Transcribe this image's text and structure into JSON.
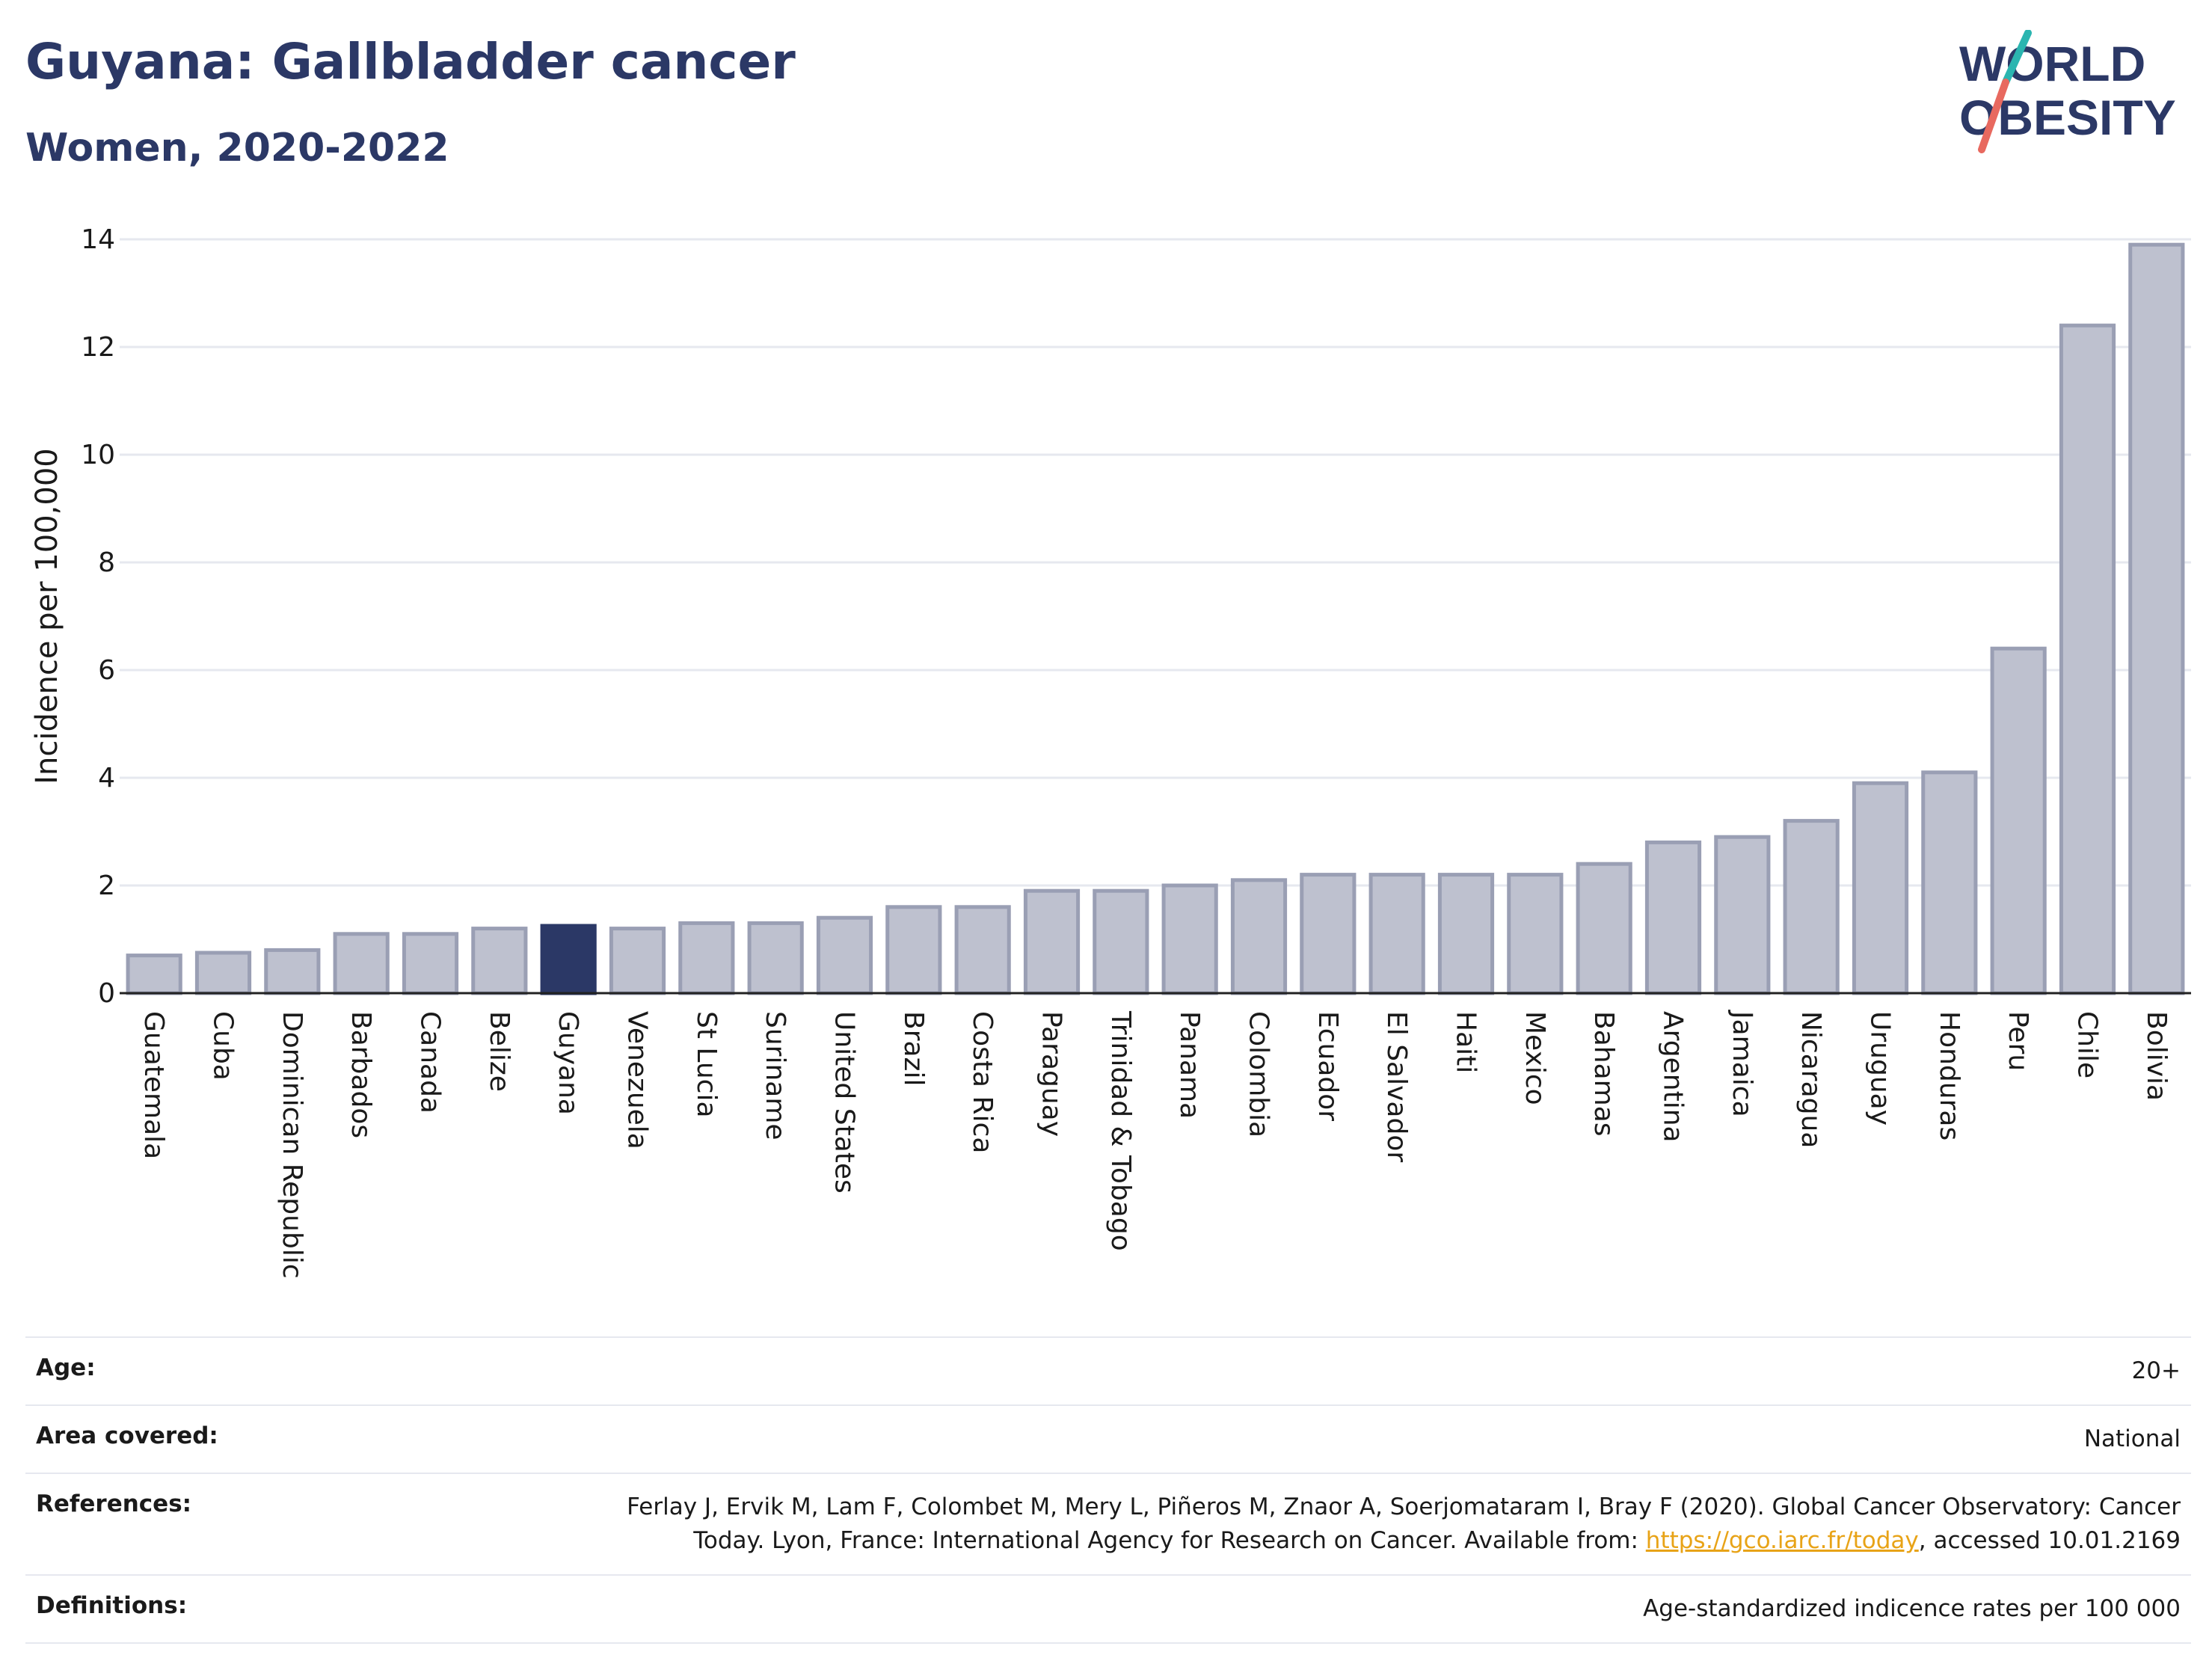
{
  "header": {
    "title": "Guyana: Gallbladder cancer",
    "subtitle": "Women, 2020-2022"
  },
  "logo": {
    "line1": "WORLD",
    "line2": "OBESITY",
    "colors": {
      "text": "#2b3866",
      "slash_teal": "#2bb5b0",
      "slash_coral": "#e8695f"
    }
  },
  "colors": {
    "bar_default": "#bec1cf",
    "bar_default_border": "#9a9fb4",
    "bar_highlight": "#2b3866",
    "grid": "#e6e8ef",
    "axis": "#222222"
  },
  "chart_data": {
    "type": "bar",
    "ylabel": "Incidence per 100,000",
    "xlabel": "",
    "ylim": [
      0,
      14
    ],
    "yticks": [
      0,
      2,
      4,
      6,
      8,
      10,
      12,
      14
    ],
    "grid": true,
    "highlight": "Guyana",
    "categories": [
      "Guatemala",
      "Cuba",
      "Dominican Republic",
      "Barbados",
      "Canada",
      "Belize",
      "Guyana",
      "Venezuela",
      "St Lucia",
      "Suriname",
      "United States",
      "Brazil",
      "Costa Rica",
      "Paraguay",
      "Trinidad & Tobago",
      "Panama",
      "Colombia",
      "Ecuador",
      "El Salvador",
      "Haiti",
      "Mexico",
      "Bahamas",
      "Argentina",
      "Jamaica",
      "Nicaragua",
      "Uruguay",
      "Honduras",
      "Peru",
      "Chile",
      "Bolivia"
    ],
    "values": [
      0.7,
      0.75,
      0.8,
      1.1,
      1.1,
      1.2,
      1.25,
      1.2,
      1.3,
      1.3,
      1.4,
      1.6,
      1.6,
      1.9,
      1.9,
      2.0,
      2.1,
      2.2,
      2.2,
      2.2,
      2.2,
      2.4,
      2.8,
      2.9,
      3.2,
      3.9,
      4.1,
      6.4,
      12.4,
      13.9
    ]
  },
  "info": {
    "age": {
      "label": "Age:",
      "value": "20+"
    },
    "area": {
      "label": "Area covered:",
      "value": "National"
    },
    "references": {
      "label": "References:",
      "line1": "Ferlay J, Ervik M, Lam F, Colombet M, Mery L, Piñeros M, Znaor A, Soerjomataram I, Bray F (2020). Global Cancer Observatory: Cancer",
      "line2_pre": "Today. Lyon, France: International Agency for Research on Cancer. Available from: ",
      "link": "https://gco.iarc.fr/today",
      "line2_post": ", accessed 10.01.2169"
    },
    "definitions": {
      "label": "Definitions:",
      "value": "Age-standardized indicence rates per 100 000"
    }
  }
}
